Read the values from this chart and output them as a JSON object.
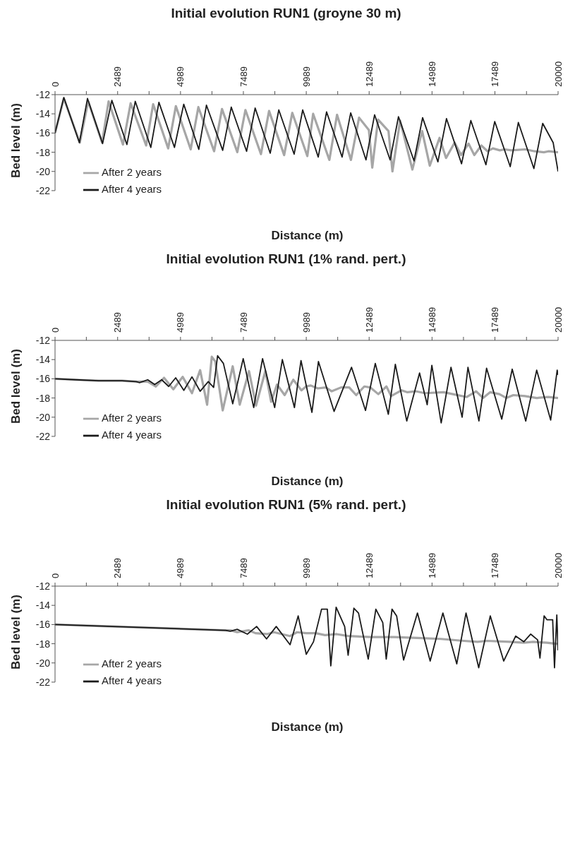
{
  "chart_data": [
    {
      "type": "line",
      "title": "Initial evolution RUN1 (groyne 30 m)",
      "xlabel": "Distance (m)",
      "ylabel": "Bed level (m)",
      "xlim": [
        0,
        20000
      ],
      "xticks": [
        0,
        {
          "value": 1245,
          "label": null
        },
        2489,
        {
          "value": 3739,
          "label": null
        },
        4989,
        {
          "value": 6239,
          "label": null
        },
        7489,
        {
          "value": 8739,
          "label": null
        },
        9989,
        {
          "value": 11239,
          "label": null
        },
        12489,
        {
          "value": 13739,
          "label": null
        },
        14989,
        {
          "value": 16239,
          "label": null
        },
        17489,
        {
          "value": 18745,
          "label": null
        },
        20000
      ],
      "ylim": [
        -22,
        -12
      ],
      "yticks": [
        -12,
        -14,
        -16,
        -18,
        -20,
        -22
      ],
      "legend": "bottom left",
      "series": [
        {
          "name": "After 2 years",
          "color": "#a6a6a6",
          "x": [
            0,
            350,
            986,
            1318,
            1872,
            2130,
            2701,
            3006,
            3623,
            3901,
            4499,
            4804,
            5394,
            5698,
            6325,
            6638,
            7247,
            7570,
            8187,
            8510,
            9109,
            9432,
            10031,
            10262,
            10907,
            11212,
            11765,
            12088,
            12480,
            12613,
            12843,
            13258,
            13415,
            13719,
            14208,
            14596,
            14900,
            15287,
            15546,
            15887,
            16145,
            16440,
            16670,
            16947,
            17196,
            17408,
            17684,
            17868,
            18145,
            18698,
            19067,
            19436,
            19620,
            20000
          ],
          "values": [
            -16,
            -12.4,
            -17,
            -12.7,
            -17,
            -12.7,
            -17.2,
            -12.9,
            -17.3,
            -13,
            -17.6,
            -13.2,
            -17.7,
            -13.3,
            -17.9,
            -13.5,
            -18,
            -13.6,
            -18.2,
            -13.7,
            -18.3,
            -13.9,
            -18.4,
            -14,
            -18.8,
            -14.1,
            -18.8,
            -14.4,
            -15.7,
            -19.6,
            -14.6,
            -15.8,
            -20,
            -14.7,
            -19.8,
            -15.8,
            -19.4,
            -16.5,
            -18.6,
            -17,
            -18.3,
            -17.1,
            -18.3,
            -17.3,
            -17.9,
            -17.6,
            -17.8,
            -17.7,
            -17.8,
            -17.7,
            -17.9,
            -18,
            -17.9,
            -18
          ]
        },
        {
          "name": "After 4 years",
          "color": "#1a1a1a",
          "x": [
            0,
            350,
            968,
            1291,
            1890,
            2259,
            2858,
            3190,
            3808,
            4130,
            4748,
            5117,
            5716,
            6020,
            6666,
            7007,
            7616,
            7957,
            8556,
            8897,
            9506,
            9847,
            10465,
            10796,
            11414,
            11755,
            12364,
            12705,
            13323,
            13655,
            14273,
            14614,
            15223,
            15564,
            16163,
            16532,
            17131,
            17481,
            18099,
            18421,
            19039,
            19390,
            19805,
            20000
          ],
          "values": [
            -16,
            -12.3,
            -17,
            -12.4,
            -17.1,
            -12.6,
            -17.2,
            -12.7,
            -17.5,
            -12.8,
            -17.5,
            -13,
            -17.7,
            -13.1,
            -17.8,
            -13.3,
            -17.9,
            -13.4,
            -18.1,
            -13.6,
            -18.2,
            -13.6,
            -18.5,
            -13.8,
            -18.5,
            -13.9,
            -18.8,
            -14.1,
            -18.8,
            -14.3,
            -18.9,
            -14.4,
            -19,
            -14.5,
            -19.2,
            -14.7,
            -19.3,
            -14.8,
            -19.5,
            -14.9,
            -19.7,
            -15,
            -17,
            -20
          ]
        }
      ]
    },
    {
      "type": "line",
      "title": "Initial evolution RUN1 (1% rand. pert.)",
      "xlabel": "Distance (m)",
      "ylabel": "Bed level (m)",
      "xlim": [
        0,
        20000
      ],
      "xticks": [
        0,
        {
          "value": 1245,
          "label": null
        },
        2489,
        {
          "value": 3739,
          "label": null
        },
        4989,
        {
          "value": 6239,
          "label": null
        },
        7489,
        {
          "value": 8739,
          "label": null
        },
        9989,
        {
          "value": 11239,
          "label": null
        },
        12489,
        {
          "value": 13739,
          "label": null
        },
        14989,
        {
          "value": 16239,
          "label": null
        },
        17489,
        {
          "value": 18745,
          "label": null
        },
        20000
      ],
      "ylim": [
        -22,
        -12
      ],
      "yticks": [
        -12,
        -14,
        -16,
        -18,
        -20,
        -22
      ],
      "legend": "bottom left",
      "series": [
        {
          "name": "After 2 years",
          "color": "#a6a6a6",
          "x": [
            0,
            815,
            1741,
            2667,
            3222,
            3685,
            4009,
            4334,
            4704,
            5074,
            5445,
            5769,
            6047,
            6232,
            6371,
            6667,
            7065,
            7343,
            7713,
            7991,
            8362,
            8593,
            8825,
            9130,
            9473,
            9797,
            9982,
            10167,
            10445,
            10769,
            11002,
            11371,
            11695,
            11973,
            12297,
            12529,
            12853,
            13177,
            13362,
            13779,
            14011,
            14335,
            14705,
            15446,
            15816,
            16371,
            16742,
            17019,
            17297,
            17668,
            17945,
            18223,
            18686,
            19150,
            19613,
            20000
          ],
          "values": [
            -16,
            -16.1,
            -16.2,
            -16.2,
            -16.3,
            -16.3,
            -16.8,
            -15.9,
            -17.1,
            -15.8,
            -17.5,
            -15.1,
            -18.7,
            -13.7,
            -14.2,
            -19.3,
            -14.7,
            -18.7,
            -15.2,
            -18.8,
            -15.2,
            -18.4,
            -16.6,
            -17.7,
            -16.1,
            -17.2,
            -16.8,
            -16.7,
            -17,
            -16.9,
            -17.3,
            -16.9,
            -16.9,
            -17.7,
            -16.8,
            -16.9,
            -17.6,
            -16.8,
            -17.8,
            -17.2,
            -17.4,
            -17.3,
            -17.5,
            -17.4,
            -17.6,
            -17.9,
            -17.3,
            -18,
            -17.4,
            -17.6,
            -18,
            -17.7,
            -17.8,
            -18,
            -17.9,
            -18
          ]
        },
        {
          "name": "After 4 years",
          "color": "#1a1a1a",
          "x": [
            0,
            815,
            1741,
            2667,
            3222,
            3361,
            3685,
            3963,
            4241,
            4519,
            4797,
            5121,
            5445,
            5769,
            6093,
            6306,
            6463,
            6695,
            7065,
            7482,
            7899,
            8251,
            8732,
            9038,
            9519,
            9779,
            10214,
            10473,
            11094,
            11788,
            12344,
            12733,
            13252,
            13530,
            13984,
            14493,
            14796,
            14982,
            15353,
            15742,
            16186,
            16418,
            16853,
            17158,
            17761,
            18177,
            18715,
            19150,
            19706,
            19965,
            20000
          ],
          "values": [
            -16,
            -16.1,
            -16.2,
            -16.2,
            -16.3,
            -16.4,
            -16.1,
            -16.6,
            -16.1,
            -16.8,
            -15.9,
            -17.2,
            -15.8,
            -17.3,
            -16.3,
            -16.9,
            -13.6,
            -14.4,
            -18.6,
            -13.9,
            -19,
            -13.9,
            -19,
            -14,
            -19,
            -14.1,
            -19.5,
            -14.2,
            -19.4,
            -14.8,
            -19.3,
            -14.4,
            -19.7,
            -14.5,
            -20.4,
            -15.4,
            -18.7,
            -14.6,
            -20.6,
            -14.8,
            -20,
            -14.8,
            -20.4,
            -14.9,
            -20.2,
            -15,
            -20.4,
            -15.1,
            -20.3,
            -15.1,
            -15.6
          ]
        }
      ]
    },
    {
      "type": "line",
      "title": "Initial evolution RUN1 (5% rand. pert.)",
      "xlabel": "Distance (m)",
      "ylabel": "Bed level (m)",
      "xlim": [
        0,
        20000
      ],
      "xticks": [
        0,
        {
          "value": 1245,
          "label": null
        },
        2489,
        {
          "value": 3739,
          "label": null
        },
        4989,
        {
          "value": 6239,
          "label": null
        },
        7489,
        {
          "value": 8739,
          "label": null
        },
        9989,
        {
          "value": 11239,
          "label": null
        },
        12489,
        {
          "value": 13739,
          "label": null
        },
        14989,
        {
          "value": 16239,
          "label": null
        },
        17489,
        {
          "value": 18745,
          "label": null
        },
        20000
      ],
      "ylim": [
        -22,
        -12
      ],
      "yticks": [
        -12,
        -14,
        -16,
        -18,
        -20,
        -22
      ],
      "legend": "bottom left",
      "series": [
        {
          "name": "After 2 years",
          "color": "#a6a6a6",
          "x": [
            0,
            6782,
            6966,
            7242,
            7693,
            7968,
            8427,
            8703,
            9345,
            9621,
            9988,
            10366,
            10734,
            11194,
            11653,
            12572,
            13490,
            14409,
            15328,
            16247,
            16799,
            17166,
            18085,
            18637,
            19004,
            19556,
            19923,
            20000
          ],
          "values": [
            -16,
            -16.6,
            -16.6,
            -16.8,
            -16.6,
            -16.9,
            -17,
            -16.8,
            -17.2,
            -16.8,
            -16.9,
            -16.9,
            -17.1,
            -17,
            -17.2,
            -17.3,
            -17.3,
            -17.4,
            -17.5,
            -17.7,
            -17.8,
            -17.7,
            -17.8,
            -17.9,
            -17.8,
            -17.9,
            -18,
            -18
          ]
        },
        {
          "name": "After 4 years",
          "color": "#1a1a1a",
          "x": [
            0,
            6782,
            6966,
            7242,
            7647,
            8015,
            8409,
            8795,
            9345,
            9667,
            9988,
            10275,
            10597,
            10826,
            10964,
            11176,
            11515,
            11653,
            11882,
            12066,
            12452,
            12755,
            13030,
            13168,
            13398,
            13582,
            13858,
            14409,
            14915,
            15421,
            15972,
            16340,
            16845,
            17305,
            17838,
            18316,
            18637,
            18913,
            19188,
            19280,
            19445,
            19556,
            19785,
            19858,
            19950,
            20000
          ],
          "values": [
            -16,
            -16.6,
            -16.7,
            -16.5,
            -17,
            -16.2,
            -17.5,
            -16.2,
            -18.1,
            -15.1,
            -19.1,
            -17.8,
            -14.4,
            -14.4,
            -20.3,
            -14.2,
            -16.2,
            -19.2,
            -14.3,
            -14.8,
            -19.6,
            -14.4,
            -15.8,
            -19.6,
            -14.4,
            -15.1,
            -19.7,
            -14.8,
            -19.8,
            -14.8,
            -20.1,
            -14.8,
            -20.5,
            -15.1,
            -19.8,
            -17.2,
            -17.8,
            -17,
            -17.6,
            -19.5,
            -15.1,
            -15.5,
            -15.5,
            -20.5,
            -15,
            -18.7
          ]
        }
      ]
    }
  ]
}
